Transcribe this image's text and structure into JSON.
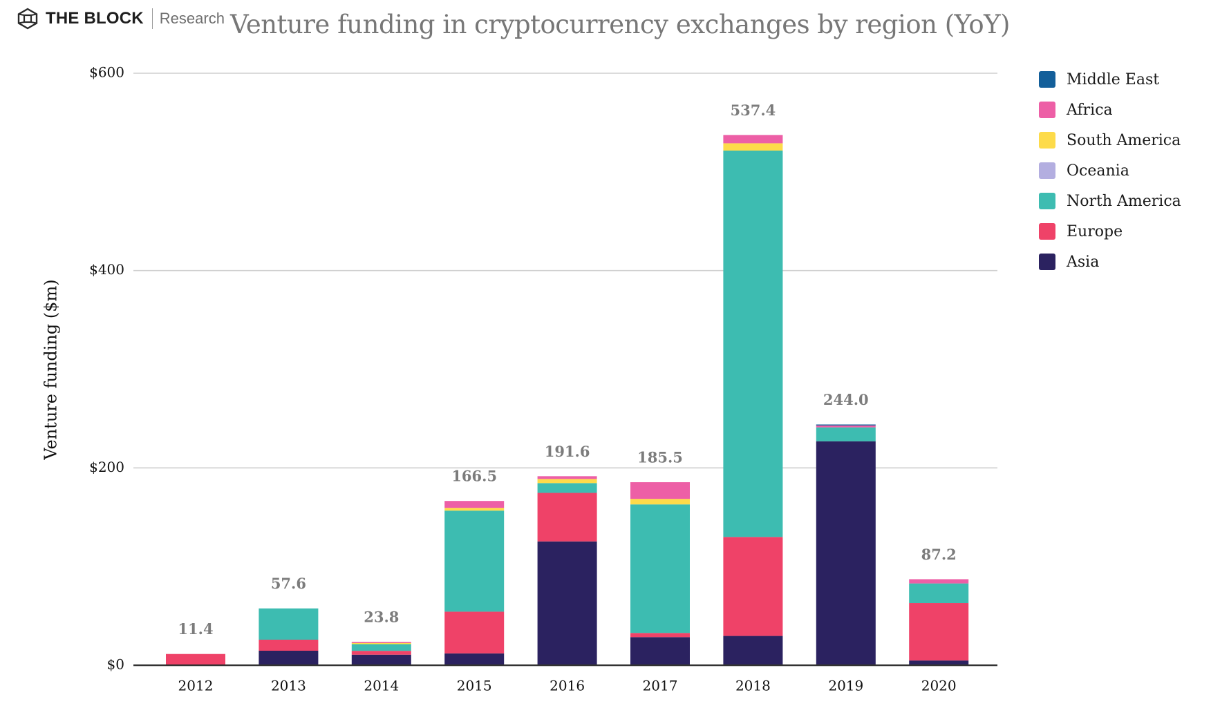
{
  "header": {
    "brand": "THE BLOCK",
    "sub_brand": "Research",
    "logo_icon": "hexagon-cube-icon"
  },
  "chart_data": {
    "type": "bar",
    "stacked": true,
    "title": "Venture funding in cryptocurrency exchanges by region (YoY)",
    "xlabel": "",
    "ylabel": "Venture funding ($m)",
    "ylim": [
      0,
      600
    ],
    "yticks": [
      0,
      200,
      400,
      600
    ],
    "ytick_labels": [
      "$0",
      "$200",
      "$400",
      "$600"
    ],
    "grid": true,
    "legend_position": "right",
    "categories": [
      "2012",
      "2013",
      "2014",
      "2015",
      "2016",
      "2017",
      "2018",
      "2019",
      "2020"
    ],
    "totals": [
      11.4,
      57.6,
      23.8,
      166.5,
      191.6,
      185.5,
      537.4,
      244.0,
      87.2
    ],
    "total_labels": [
      "11.4",
      "57.6",
      "23.8",
      "166.5",
      "191.6",
      "185.5",
      "537.4",
      "244.0",
      "87.2"
    ],
    "series": [
      {
        "name": "Asia",
        "color": "#2b2260",
        "values": [
          0,
          14.7,
          10.7,
          12.0,
          125.5,
          28.5,
          29.7,
          227.0,
          4.8
        ]
      },
      {
        "name": "Europe",
        "color": "#ef4268",
        "values": [
          11.4,
          11.2,
          3.9,
          42.3,
          49.2,
          4.2,
          100.3,
          0,
          58.2
        ]
      },
      {
        "name": "North America",
        "color": "#3dbcb1",
        "values": [
          0,
          31.7,
          6.8,
          102.4,
          9.9,
          130.3,
          391.6,
          14.1,
          19.9
        ]
      },
      {
        "name": "Oceania",
        "color": "#b3aee0",
        "values": [
          0,
          0,
          0,
          0,
          0,
          0,
          0,
          0,
          0
        ]
      },
      {
        "name": "South America",
        "color": "#fddb4a",
        "values": [
          0,
          0,
          1.2,
          2.8,
          4.2,
          5.6,
          7.4,
          0,
          0
        ]
      },
      {
        "name": "Africa",
        "color": "#ed5fa6",
        "values": [
          0,
          0,
          1.2,
          7.0,
          2.8,
          16.9,
          8.4,
          1.9,
          4.3
        ]
      },
      {
        "name": "Middle East",
        "color": "#135f9a",
        "values": [
          0,
          0,
          0,
          0,
          0,
          0,
          0,
          1.0,
          0
        ]
      }
    ],
    "legend_order": [
      "Middle East",
      "Africa",
      "South America",
      "Oceania",
      "North America",
      "Europe",
      "Asia"
    ]
  }
}
